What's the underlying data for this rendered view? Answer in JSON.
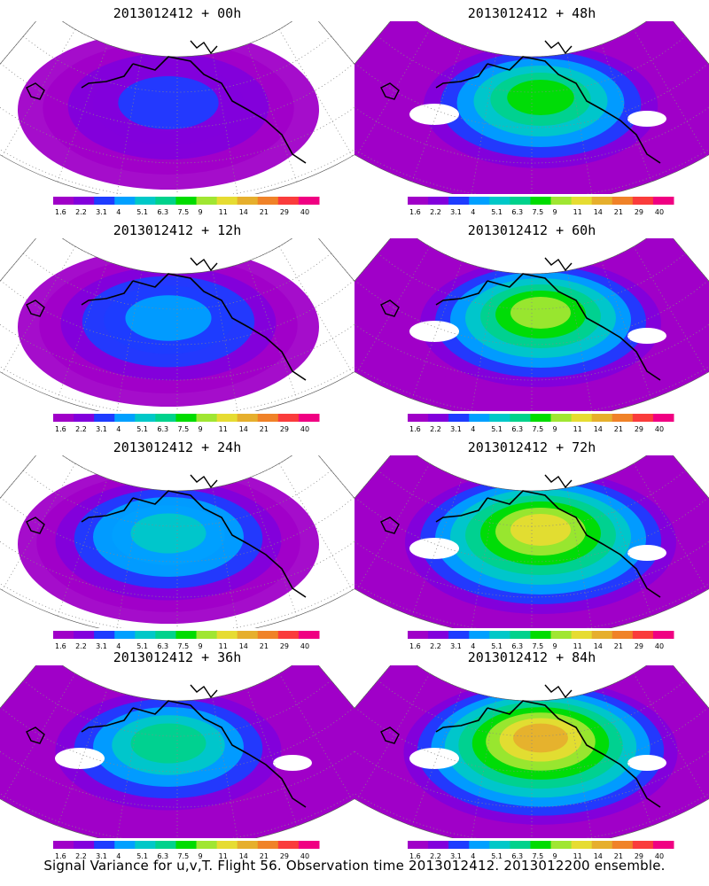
{
  "panels": [
    {
      "title": "2013012412 + 00h",
      "intensity": 0.25
    },
    {
      "title": "2013012412 + 48h",
      "intensity": 0.6
    },
    {
      "title": "2013012412 + 12h",
      "intensity": 0.35
    },
    {
      "title": "2013012412 + 60h",
      "intensity": 0.7
    },
    {
      "title": "2013012412 + 24h",
      "intensity": 0.45
    },
    {
      "title": "2013012412 + 72h",
      "intensity": 0.8
    },
    {
      "title": "2013012412 + 36h",
      "intensity": 0.55
    },
    {
      "title": "2013012412 + 84h",
      "intensity": 0.9
    }
  ],
  "colorbar": {
    "labels": [
      "1.6",
      "2.2",
      "3.1",
      "4",
      "5.1",
      "6.3",
      "7.5",
      "9",
      "11",
      "14",
      "21",
      "29",
      "40"
    ],
    "colors": [
      "#a000c8",
      "#8200dc",
      "#1e3cff",
      "#00a0ff",
      "#00c8c8",
      "#00d28c",
      "#00dc00",
      "#a0e632",
      "#e6dc32",
      "#e6af2d",
      "#f08228",
      "#fa3c3c",
      "#f00082"
    ]
  },
  "caption": "Signal Variance for u,v,T. Flight 56. Observation time 2013012412. 2013012200 ensemble."
}
